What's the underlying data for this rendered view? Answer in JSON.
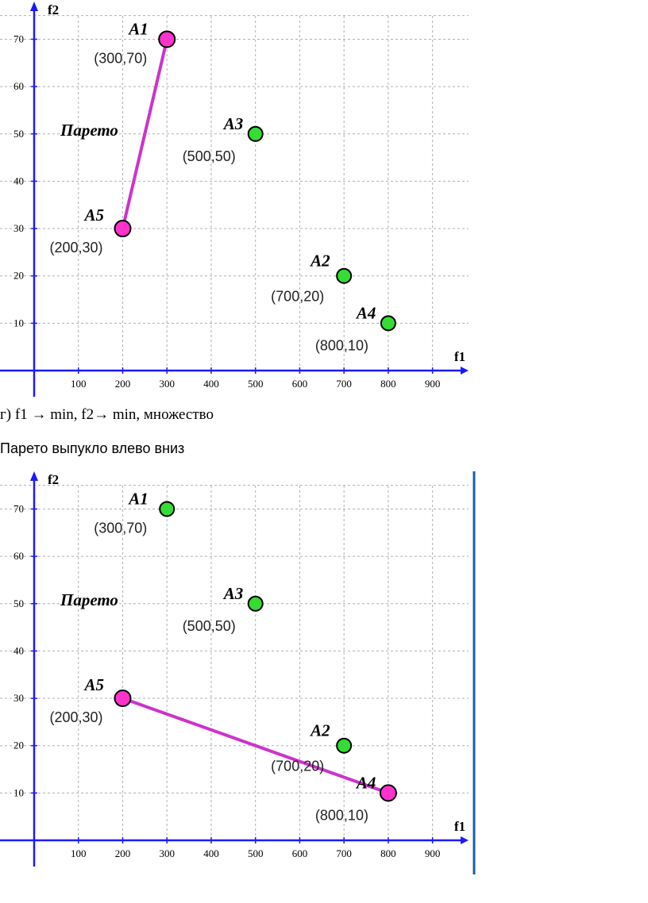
{
  "chart_data": [
    {
      "type": "scatter",
      "xlabel": "f1",
      "ylabel": "f2",
      "xlim": [
        0,
        950
      ],
      "ylim": [
        0,
        75
      ],
      "x_ticks": [
        "100",
        "200",
        "300",
        "400",
        "500",
        "600",
        "700",
        "800",
        "900"
      ],
      "y_ticks": [
        "10",
        "20",
        "30",
        "40",
        "50",
        "60",
        "70"
      ],
      "grid": true,
      "annotation": "Парето",
      "points": [
        {
          "name": "A1",
          "label": "(300,70)",
          "x": 300,
          "y": 70,
          "pareto": true,
          "color": "#ff33cc"
        },
        {
          "name": "A3",
          "label": "(500,50)",
          "x": 500,
          "y": 50,
          "pareto": false,
          "color": "#33dd33"
        },
        {
          "name": "A5",
          "label": "(200,30)",
          "x": 200,
          "y": 30,
          "pareto": true,
          "color": "#ff33cc"
        },
        {
          "name": "A2",
          "label": "(700,20)",
          "x": 700,
          "y": 20,
          "pareto": false,
          "color": "#33dd33"
        },
        {
          "name": "A4",
          "label": "(800,10)",
          "x": 800,
          "y": 10,
          "pareto": false,
          "color": "#33dd33"
        }
      ],
      "pareto_line": [
        "A5",
        "A1"
      ],
      "pareto_line_color": "#cc33cc"
    },
    {
      "type": "scatter",
      "xlabel": "f1",
      "ylabel": "f2",
      "xlim": [
        0,
        950
      ],
      "ylim": [
        0,
        75
      ],
      "x_ticks": [
        "100",
        "200",
        "300",
        "400",
        "500",
        "600",
        "700",
        "800",
        "900"
      ],
      "y_ticks": [
        "10",
        "20",
        "30",
        "40",
        "50",
        "60",
        "70"
      ],
      "grid": true,
      "annotation": "Парето",
      "points": [
        {
          "name": "A1",
          "label": "(300,70)",
          "x": 300,
          "y": 70,
          "pareto": false,
          "color": "#33dd33"
        },
        {
          "name": "A3",
          "label": "(500,50)",
          "x": 500,
          "y": 50,
          "pareto": false,
          "color": "#33dd33"
        },
        {
          "name": "A5",
          "label": "(200,30)",
          "x": 200,
          "y": 30,
          "pareto": true,
          "color": "#ff33cc"
        },
        {
          "name": "A2",
          "label": "(700,20)",
          "x": 700,
          "y": 20,
          "pareto": false,
          "color": "#33dd33"
        },
        {
          "name": "A4",
          "label": "(800,10)",
          "x": 800,
          "y": 10,
          "pareto": true,
          "color": "#ff33cc"
        }
      ],
      "pareto_line": [
        "A5",
        "A4"
      ],
      "pareto_line_color": "#cc33cc",
      "boundary_line_color": "#1a5fa8"
    }
  ],
  "captions": {
    "line1": "г) f1  → min, f2→ min, множество",
    "line2": "Парето выпукло влево вниз"
  },
  "colors": {
    "axis": "#1a1aff",
    "grid": "#b0b0b0"
  }
}
